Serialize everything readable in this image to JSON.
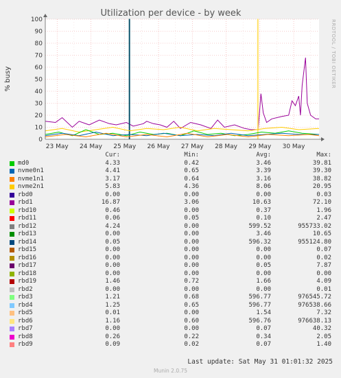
{
  "chart_data": {
    "type": "line",
    "title": "Utilization per device - by week",
    "ylabel": "% busy",
    "side_label": "RRDTOOL / TOBI OETIKER",
    "ylim": [
      0,
      100
    ],
    "yticks": [
      0,
      10,
      20,
      30,
      40,
      50,
      60,
      70,
      80,
      90,
      100
    ],
    "xlim": [
      0,
      8.1
    ],
    "xticks": [
      {
        "v": 0.35,
        "label": "23 May"
      },
      {
        "v": 1.35,
        "label": "24 May"
      },
      {
        "v": 2.35,
        "label": "25 May"
      },
      {
        "v": 3.35,
        "label": "26 May"
      },
      {
        "v": 4.35,
        "label": "27 May"
      },
      {
        "v": 5.35,
        "label": "28 May"
      },
      {
        "v": 6.35,
        "label": "29 May"
      },
      {
        "v": 7.35,
        "label": "30 May"
      }
    ],
    "grid": true,
    "series": [
      {
        "name": "rbd1",
        "color": "#990099",
        "points": [
          [
            0,
            15
          ],
          [
            0.3,
            14
          ],
          [
            0.5,
            18
          ],
          [
            0.8,
            10
          ],
          [
            1.0,
            15
          ],
          [
            1.3,
            12
          ],
          [
            1.6,
            16
          ],
          [
            1.9,
            13
          ],
          [
            2.1,
            12
          ],
          [
            2.4,
            14
          ],
          [
            2.6,
            11
          ],
          [
            2.9,
            13
          ],
          [
            3.0,
            15
          ],
          [
            3.2,
            13
          ],
          [
            3.4,
            12
          ],
          [
            3.6,
            10
          ],
          [
            3.8,
            15
          ],
          [
            4.0,
            9
          ],
          [
            4.3,
            14
          ],
          [
            4.6,
            12
          ],
          [
            4.9,
            9
          ],
          [
            5.1,
            16
          ],
          [
            5.3,
            10
          ],
          [
            5.6,
            12
          ],
          [
            5.9,
            9
          ],
          [
            6.1,
            8
          ],
          [
            6.3,
            8
          ],
          [
            6.38,
            38
          ],
          [
            6.45,
            22
          ],
          [
            6.55,
            14
          ],
          [
            6.7,
            17
          ],
          [
            7.0,
            19
          ],
          [
            7.2,
            20
          ],
          [
            7.3,
            32
          ],
          [
            7.4,
            28
          ],
          [
            7.5,
            36
          ],
          [
            7.55,
            20
          ],
          [
            7.6,
            45
          ],
          [
            7.7,
            68
          ],
          [
            7.75,
            30
          ],
          [
            7.85,
            20
          ],
          [
            8.0,
            17
          ],
          [
            8.1,
            17
          ]
        ]
      },
      {
        "name": "rbd14",
        "color": "#004c66",
        "points": [
          [
            2.48,
            0
          ],
          [
            2.48,
            100
          ],
          [
            2.5,
            100
          ],
          [
            2.5,
            0
          ]
        ]
      },
      {
        "name": "rbd6",
        "color": "#ffe066",
        "points": [
          [
            6.28,
            0
          ],
          [
            6.28,
            100
          ],
          [
            6.3,
            100
          ],
          [
            6.3,
            0
          ]
        ]
      },
      {
        "name": "nvme2n1",
        "color": "#ffcc00",
        "points": [
          [
            0,
            7
          ],
          [
            0.5,
            9
          ],
          [
            1.0,
            6
          ],
          [
            1.5,
            8
          ],
          [
            2.0,
            10
          ],
          [
            2.5,
            7
          ],
          [
            3.0,
            9
          ],
          [
            3.5,
            8
          ],
          [
            4.0,
            10
          ],
          [
            4.5,
            7
          ],
          [
            5.0,
            9
          ],
          [
            5.5,
            8
          ],
          [
            6.0,
            7
          ],
          [
            6.5,
            9
          ],
          [
            7.0,
            10
          ],
          [
            7.5,
            8
          ],
          [
            8.1,
            9
          ]
        ]
      },
      {
        "name": "md0",
        "color": "#00cc00",
        "points": [
          [
            0,
            4
          ],
          [
            0.4,
            6
          ],
          [
            0.8,
            3
          ],
          [
            1.2,
            8
          ],
          [
            1.6,
            4
          ],
          [
            2.0,
            5
          ],
          [
            2.4,
            3
          ],
          [
            2.8,
            6
          ],
          [
            3.2,
            4
          ],
          [
            3.6,
            5
          ],
          [
            4.0,
            3
          ],
          [
            4.4,
            7
          ],
          [
            4.8,
            4
          ],
          [
            5.2,
            5
          ],
          [
            5.6,
            3
          ],
          [
            6.0,
            4
          ],
          [
            6.4,
            6
          ],
          [
            6.8,
            5
          ],
          [
            7.2,
            7
          ],
          [
            7.6,
            5
          ],
          [
            8.1,
            4
          ]
        ]
      },
      {
        "name": "nvme0n1",
        "color": "#0066b3",
        "points": [
          [
            0,
            3
          ],
          [
            0.5,
            5
          ],
          [
            1.0,
            3
          ],
          [
            1.5,
            6
          ],
          [
            2.0,
            3
          ],
          [
            2.5,
            4
          ],
          [
            3.0,
            3
          ],
          [
            3.5,
            5
          ],
          [
            4.0,
            3
          ],
          [
            4.5,
            4
          ],
          [
            5.0,
            3
          ],
          [
            5.5,
            5
          ],
          [
            6.0,
            3
          ],
          [
            6.5,
            4
          ],
          [
            7.0,
            5
          ],
          [
            7.5,
            4
          ],
          [
            8.1,
            4
          ]
        ]
      },
      {
        "name": "nvme1n1",
        "color": "#ff8000",
        "points": [
          [
            0,
            2
          ],
          [
            0.6,
            4
          ],
          [
            1.2,
            2
          ],
          [
            1.8,
            5
          ],
          [
            2.4,
            2
          ],
          [
            3.0,
            4
          ],
          [
            3.6,
            2
          ],
          [
            4.2,
            5
          ],
          [
            4.8,
            2
          ],
          [
            5.4,
            4
          ],
          [
            6.0,
            2
          ],
          [
            6.6,
            4
          ],
          [
            7.2,
            3
          ],
          [
            7.8,
            4
          ],
          [
            8.1,
            3
          ]
        ]
      }
    ]
  },
  "legend": {
    "headers": {
      "cur": "Cur:",
      "min": "Min:",
      "avg": "Avg:",
      "max": "Max:"
    },
    "rows": [
      {
        "name": "md0",
        "color": "#00cc00",
        "cur": "4.33",
        "min": "0.42",
        "avg": "3.46",
        "max": "39.81"
      },
      {
        "name": "nvme0n1",
        "color": "#0066b3",
        "cur": "4.41",
        "min": "0.65",
        "avg": "3.39",
        "max": "39.30"
      },
      {
        "name": "nvme1n1",
        "color": "#ff8000",
        "cur": "3.17",
        "min": "0.64",
        "avg": "3.16",
        "max": "38.82"
      },
      {
        "name": "nvme2n1",
        "color": "#ffcc00",
        "cur": "5.83",
        "min": "4.36",
        "avg": "8.06",
        "max": "20.95"
      },
      {
        "name": "rbd0",
        "color": "#330099",
        "cur": "0.00",
        "min": "0.00",
        "avg": "0.00",
        "max": "0.03"
      },
      {
        "name": "rbd1",
        "color": "#990099",
        "cur": "16.87",
        "min": "3.06",
        "avg": "10.63",
        "max": "72.10"
      },
      {
        "name": "rbd10",
        "color": "#ccff00",
        "cur": "0.46",
        "min": "0.00",
        "avg": "0.37",
        "max": "1.96"
      },
      {
        "name": "rbd11",
        "color": "#ff0000",
        "cur": "0.06",
        "min": "0.05",
        "avg": "0.10",
        "max": "2.47"
      },
      {
        "name": "rbd12",
        "color": "#808080",
        "cur": "4.24",
        "min": "0.00",
        "avg": "599.52",
        "max": "955733.02"
      },
      {
        "name": "rbd13",
        "color": "#008f00",
        "cur": "0.00",
        "min": "0.00",
        "avg": "3.46",
        "max": "10.65"
      },
      {
        "name": "rbd14",
        "color": "#00487d",
        "cur": "0.05",
        "min": "0.00",
        "avg": "596.32",
        "max": "955124.80"
      },
      {
        "name": "rbd15",
        "color": "#b35a00",
        "cur": "0.00",
        "min": "0.00",
        "avg": "0.00",
        "max": "0.07"
      },
      {
        "name": "rbd16",
        "color": "#b38f00",
        "cur": "0.00",
        "min": "0.00",
        "avg": "0.00",
        "max": "0.02"
      },
      {
        "name": "rbd17",
        "color": "#6b006b",
        "cur": "0.00",
        "min": "0.00",
        "avg": "0.05",
        "max": "7.87"
      },
      {
        "name": "rbd18",
        "color": "#8fb300",
        "cur": "0.00",
        "min": "0.00",
        "avg": "0.00",
        "max": "0.00"
      },
      {
        "name": "rbd19",
        "color": "#b30000",
        "cur": "1.46",
        "min": "0.72",
        "avg": "1.66",
        "max": "4.09"
      },
      {
        "name": "rbd2",
        "color": "#bebebe",
        "cur": "0.00",
        "min": "0.00",
        "avg": "0.00",
        "max": "0.01"
      },
      {
        "name": "rbd3",
        "color": "#80ff80",
        "cur": "1.21",
        "min": "0.68",
        "avg": "596.77",
        "max": "976545.72"
      },
      {
        "name": "rbd4",
        "color": "#80c9ff",
        "cur": "1.25",
        "min": "0.65",
        "avg": "596.77",
        "max": "976538.66"
      },
      {
        "name": "rbd5",
        "color": "#ffc080",
        "cur": "0.01",
        "min": "0.00",
        "avg": "1.54",
        "max": "7.32"
      },
      {
        "name": "rbd6",
        "color": "#ffe680",
        "cur": "1.16",
        "min": "0.60",
        "avg": "596.76",
        "max": "976638.13"
      },
      {
        "name": "rbd7",
        "color": "#aa80ff",
        "cur": "0.00",
        "min": "0.00",
        "avg": "0.07",
        "max": "40.32"
      },
      {
        "name": "rbd8",
        "color": "#ee00cc",
        "cur": "0.26",
        "min": "0.22",
        "avg": "0.34",
        "max": "2.05"
      },
      {
        "name": "rbd9",
        "color": "#ff8080",
        "cur": "0.09",
        "min": "0.02",
        "avg": "0.07",
        "max": "1.40"
      }
    ]
  },
  "last_update": "Last update: Sat May 31 01:01:32 2025",
  "version": "Munin 2.0.75"
}
